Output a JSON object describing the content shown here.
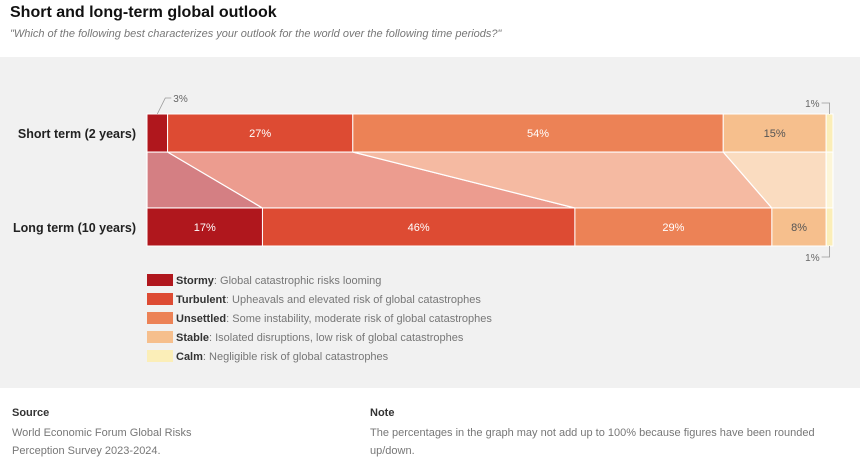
{
  "title": "Short and long-term global outlook",
  "subtitle": "\"Which of the following best characterizes your outlook for the world over the following time periods?\"",
  "colors": {
    "Stormy": "#b0171d",
    "Turbulent": "#dd4b33",
    "Unsettled": "#ec8256",
    "Stable": "#f6bf8d",
    "Calm": "#fbeeb8"
  },
  "chart_data": {
    "type": "bar",
    "orientation": "horizontal",
    "stacked": true,
    "categories": [
      "Short term (2 years)",
      "Long term (10 years)"
    ],
    "series": [
      {
        "name": "Stormy",
        "values": [
          3,
          17
        ],
        "description": "Global catastrophic risks looming"
      },
      {
        "name": "Turbulent",
        "values": [
          27,
          46
        ],
        "description": "Upheavals and elevated risk of global catastrophes"
      },
      {
        "name": "Unsettled",
        "values": [
          54,
          29
        ],
        "description": "Some instability, moderate risk of global catastrophes"
      },
      {
        "name": "Stable",
        "values": [
          15,
          8
        ],
        "description": "Isolated disruptions, low risk of global catastrophes"
      },
      {
        "name": "Calm",
        "values": [
          1,
          1
        ],
        "description": "Negligible risk of global catastrophes"
      }
    ],
    "legend_position": "bottom-left"
  },
  "footer": {
    "source_heading": "Source",
    "source_lines": [
      "World Economic Forum Global Risks",
      "Perception Survey 2023-2024."
    ],
    "note_heading": "Note",
    "note_lines": [
      "The percentages in the graph may not add up to 100% because figures have been rounded",
      "up/down."
    ]
  }
}
